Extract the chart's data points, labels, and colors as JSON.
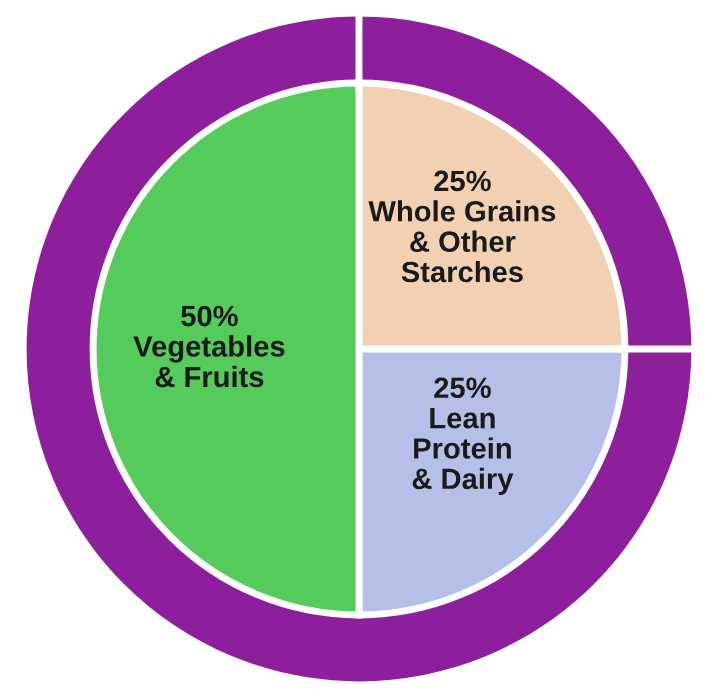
{
  "chart_data": {
    "type": "pie",
    "categories": [
      "Whole Grains\n& Other\nStarches",
      "Lean\nProtein\n& Dairy",
      "Vegetables\n& Fruits"
    ],
    "values": [
      25,
      25,
      50
    ],
    "value_labels": [
      "25%",
      "25%",
      "50%"
    ],
    "colors": [
      "#f2d0b2",
      "#b5bfe8",
      "#55cb5b"
    ]
  }
}
